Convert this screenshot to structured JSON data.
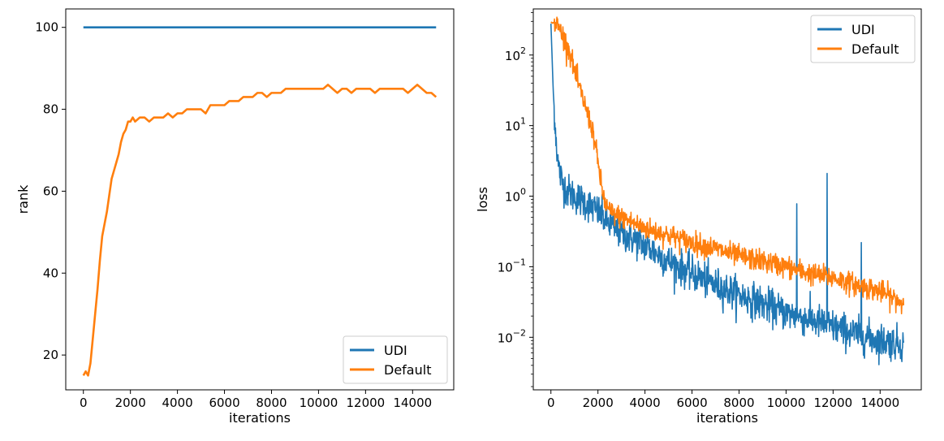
{
  "chart_data": [
    {
      "type": "line",
      "xlabel": "iterations",
      "ylabel": "rank",
      "xlim": [
        -750,
        15750
      ],
      "ylim": [
        11.5,
        104.5
      ],
      "xticks": [
        0,
        2000,
        4000,
        6000,
        8000,
        10000,
        12000,
        14000
      ],
      "xtick_labels": [
        "0",
        "2000",
        "4000",
        "6000",
        "8000",
        "10000",
        "12000",
        "14000"
      ],
      "yticks": [
        20,
        40,
        60,
        80,
        100
      ],
      "ytick_labels": [
        "20",
        "40",
        "60",
        "80",
        "100"
      ],
      "legend_position": "lower-right",
      "series": [
        {
          "name": "UDI",
          "color": "#1f77b4",
          "x": [
            0,
            15000
          ],
          "values": [
            100,
            100
          ]
        },
        {
          "name": "Default",
          "color": "#ff7f0e",
          "x": [
            0,
            100,
            200,
            300,
            400,
            500,
            600,
            700,
            800,
            900,
            1000,
            1100,
            1200,
            1300,
            1400,
            1500,
            1600,
            1700,
            1800,
            1900,
            2000,
            2100,
            2200,
            2400,
            2600,
            2800,
            3000,
            3200,
            3400,
            3600,
            3800,
            4000,
            4200,
            4400,
            4600,
            4800,
            5000,
            5200,
            5400,
            5600,
            5800,
            6000,
            6200,
            6400,
            6600,
            6800,
            7000,
            7200,
            7400,
            7600,
            7800,
            8000,
            8200,
            8400,
            8600,
            8800,
            9000,
            9200,
            9400,
            9600,
            9800,
            10000,
            10200,
            10400,
            10600,
            10800,
            11000,
            11200,
            11400,
            11600,
            11800,
            12000,
            12200,
            12400,
            12600,
            12800,
            13000,
            13200,
            13400,
            13600,
            13800,
            14000,
            14200,
            14400,
            14600,
            14800,
            15000
          ],
          "values": [
            15,
            16,
            15,
            18,
            24,
            30,
            36,
            43,
            49,
            52,
            55,
            59,
            63,
            65,
            67,
            69,
            72,
            74,
            75,
            77,
            77,
            78,
            77,
            78,
            78,
            77,
            78,
            78,
            78,
            79,
            78,
            79,
            79,
            80,
            80,
            80,
            80,
            79,
            81,
            81,
            81,
            81,
            82,
            82,
            82,
            83,
            83,
            83,
            84,
            84,
            83,
            84,
            84,
            84,
            85,
            85,
            85,
            85,
            85,
            85,
            85,
            85,
            85,
            86,
            85,
            84,
            85,
            85,
            84,
            85,
            85,
            85,
            85,
            84,
            85,
            85,
            85,
            85,
            85,
            85,
            84,
            85,
            86,
            85,
            84,
            84,
            83
          ]
        }
      ]
    },
    {
      "type": "line",
      "xlabel": "iterations",
      "ylabel": "loss",
      "yscale": "log",
      "xlim": [
        -750,
        15750
      ],
      "ylim": [
        0.0018,
        450
      ],
      "xticks": [
        0,
        2000,
        4000,
        6000,
        8000,
        10000,
        12000,
        14000
      ],
      "xtick_labels": [
        "0",
        "2000",
        "4000",
        "6000",
        "8000",
        "10000",
        "12000",
        "14000"
      ],
      "yticks": [
        0.01,
        0.1,
        1,
        10,
        100
      ],
      "ytick_labels": [
        {
          "base": "10",
          "exp": "−2"
        },
        {
          "base": "10",
          "exp": "−1"
        },
        {
          "base": "10",
          "exp": "0"
        },
        {
          "base": "10",
          "exp": "1"
        },
        {
          "base": "10",
          "exp": "2"
        }
      ],
      "legend_position": "top-right",
      "series": [
        {
          "name": "UDI",
          "color": "#1f77b4",
          "x": [
            0,
            100,
            200,
            300,
            400,
            500,
            700,
            1000,
            1500,
            2000,
            2500,
            3000,
            4000,
            5000,
            6000,
            7000,
            8000,
            9000,
            10000,
            11000,
            12000,
            13000,
            14000,
            15000
          ],
          "values": [
            280,
            30,
            8,
            3,
            2,
            1.5,
            1.2,
            1.0,
            0.8,
            0.6,
            0.4,
            0.3,
            0.2,
            0.12,
            0.08,
            0.055,
            0.04,
            0.03,
            0.022,
            0.018,
            0.014,
            0.011,
            0.009,
            0.008
          ],
          "noise": 0.28,
          "spikes": [
            {
              "x": 10450,
              "value": 0.78
            },
            {
              "x": 11750,
              "value": 2.1
            },
            {
              "x": 13200,
              "value": 0.22
            }
          ]
        },
        {
          "name": "Default",
          "color": "#ff7f0e",
          "x": [
            0,
            200,
            400,
            600,
            800,
            1000,
            1200,
            1400,
            1600,
            1800,
            2000,
            2100,
            2200,
            2300,
            2500,
            3000,
            4000,
            5000,
            6000,
            7000,
            8000,
            9000,
            10000,
            11000,
            12000,
            13000,
            14000,
            15000
          ],
          "values": [
            290,
            280,
            230,
            160,
            110,
            60,
            35,
            22,
            13,
            8,
            3,
            1.8,
            1.1,
            0.8,
            0.6,
            0.5,
            0.35,
            0.28,
            0.22,
            0.18,
            0.14,
            0.12,
            0.1,
            0.08,
            0.07,
            0.055,
            0.045,
            0.03
          ],
          "noise": 0.18
        }
      ]
    }
  ]
}
